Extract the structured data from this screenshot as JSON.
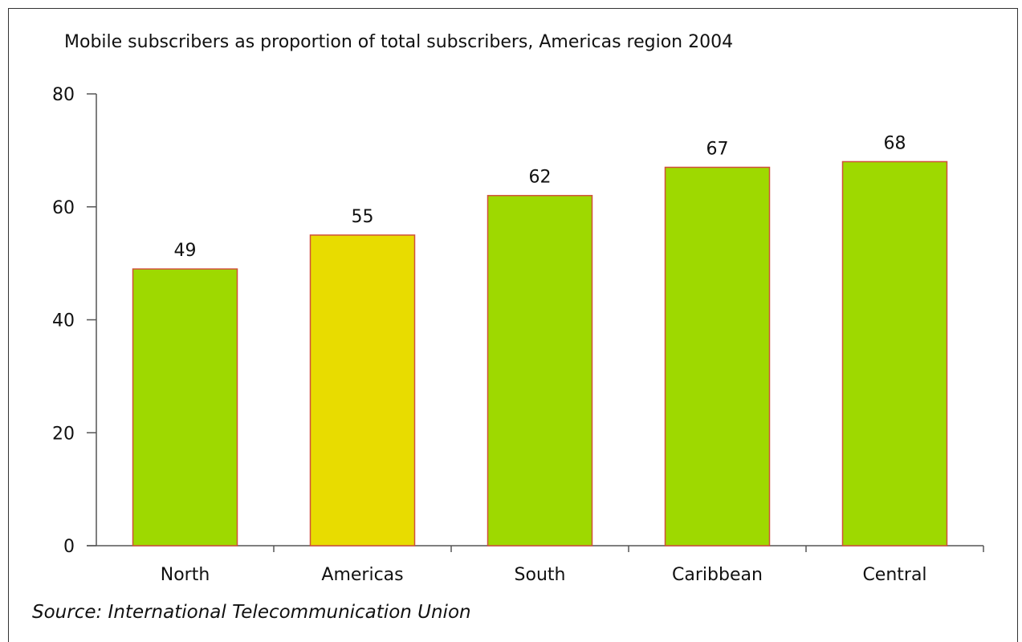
{
  "chart_data": {
    "type": "bar",
    "title": "Mobile subscribers as proportion of total subscribers, Americas region 2004",
    "categories": [
      "North",
      "Americas",
      "South",
      "Caribbean",
      "Central"
    ],
    "values": [
      49,
      55,
      62,
      67,
      68
    ],
    "data_labels": [
      "49",
      "55",
      "62",
      "67",
      "68"
    ],
    "xlabel": "",
    "ylabel": "",
    "ylim": [
      0,
      80
    ],
    "yticks": [
      "0",
      "20",
      "40",
      "60",
      "80"
    ],
    "grid": false,
    "bar_colors": [
      "#9ed900",
      "#e8dc00",
      "#9ed900",
      "#9ed900",
      "#9ed900"
    ],
    "bar_edge_color": "#d0503a",
    "source": "Source: International Telecommunication Union"
  }
}
